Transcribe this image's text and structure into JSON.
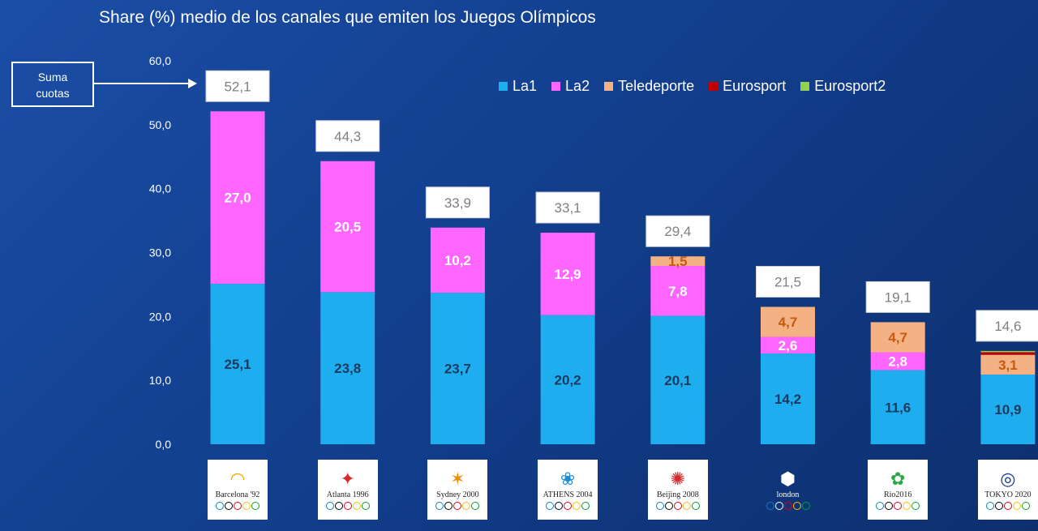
{
  "chart_data": {
    "type": "bar",
    "stacked": true,
    "title": "Share (%) medio de los canales que emiten los Juegos Olímpicos",
    "ylim": [
      0,
      60
    ],
    "yticks": [
      "0,0",
      "10,0",
      "20,0",
      "30,0",
      "40,0",
      "50,0",
      "60,0"
    ],
    "categories": [
      "Barcelona '92",
      "Atlanta 1996",
      "Sydney 2000",
      "Athens 2004",
      "Beijing 2008",
      "London 2012",
      "Rio 2016",
      "Tokyo 2020"
    ],
    "series": [
      {
        "name": "La1",
        "color": "#1eaef0",
        "values": [
          25.1,
          23.8,
          23.7,
          20.2,
          20.1,
          14.2,
          11.6,
          10.9
        ],
        "labels": [
          "25,1",
          "23,8",
          "23,7",
          "20,2",
          "20,1",
          "14,2",
          "11,6",
          "10,9"
        ],
        "label_color": "#1b3a5c"
      },
      {
        "name": "La2",
        "color": "#ff66ff",
        "values": [
          27.0,
          20.5,
          10.2,
          12.9,
          7.8,
          2.6,
          2.8,
          0
        ],
        "labels": [
          "27,0",
          "20,5",
          "10,2",
          "12,9",
          "7,8",
          "2,6",
          "2,8",
          ""
        ],
        "label_color": "#ffffff"
      },
      {
        "name": "Teledeporte",
        "color": "#f4b183",
        "values": [
          0,
          0,
          0,
          0,
          1.5,
          4.7,
          4.7,
          3.1
        ],
        "labels": [
          "",
          "",
          "",
          "",
          "1,5",
          "4,7",
          "4,7",
          "3,1"
        ],
        "label_color": "#c55a11"
      },
      {
        "name": "Eurosport",
        "color": "#c00000",
        "values": [
          0,
          0,
          0,
          0,
          0,
          0,
          0,
          0.4
        ],
        "labels": [
          "",
          "",
          "",
          "",
          "",
          "",
          "",
          ""
        ],
        "label_color": "#ffffff"
      },
      {
        "name": "Eurosport2",
        "color": "#92d050",
        "values": [
          0,
          0,
          0,
          0,
          0,
          0,
          0,
          0.2
        ],
        "labels": [
          "",
          "",
          "",
          "",
          "",
          "",
          "",
          ""
        ],
        "label_color": "#ffffff"
      }
    ],
    "totals": [
      52.1,
      44.3,
      33.9,
      33.1,
      29.4,
      21.5,
      19.1,
      14.6
    ],
    "total_labels": [
      "52,1",
      "44,3",
      "33,9",
      "33,1",
      "29,4",
      "21,5",
      "19,1",
      "14,6"
    ],
    "legend_position": "top-right",
    "grid": false
  },
  "annotation": {
    "suma_line1": "Suma",
    "suma_line2": "cuotas"
  },
  "logos": [
    {
      "icon": "barcelona-92-logo",
      "text": "Barcelona '92"
    },
    {
      "icon": "atlanta-1996-logo",
      "text": "Atlanta 1996"
    },
    {
      "icon": "sydney-2000-logo",
      "text": "Sydney 2000"
    },
    {
      "icon": "athens-2004-logo",
      "text": "ATHENS 2004"
    },
    {
      "icon": "beijing-2008-logo",
      "text": "Beijing 2008"
    },
    {
      "icon": "london-2012-logo",
      "text": "london"
    },
    {
      "icon": "rio-2016-logo",
      "text": "Rio2016"
    },
    {
      "icon": "tokyo-2020-logo",
      "text": "TOKYO 2020"
    }
  ]
}
